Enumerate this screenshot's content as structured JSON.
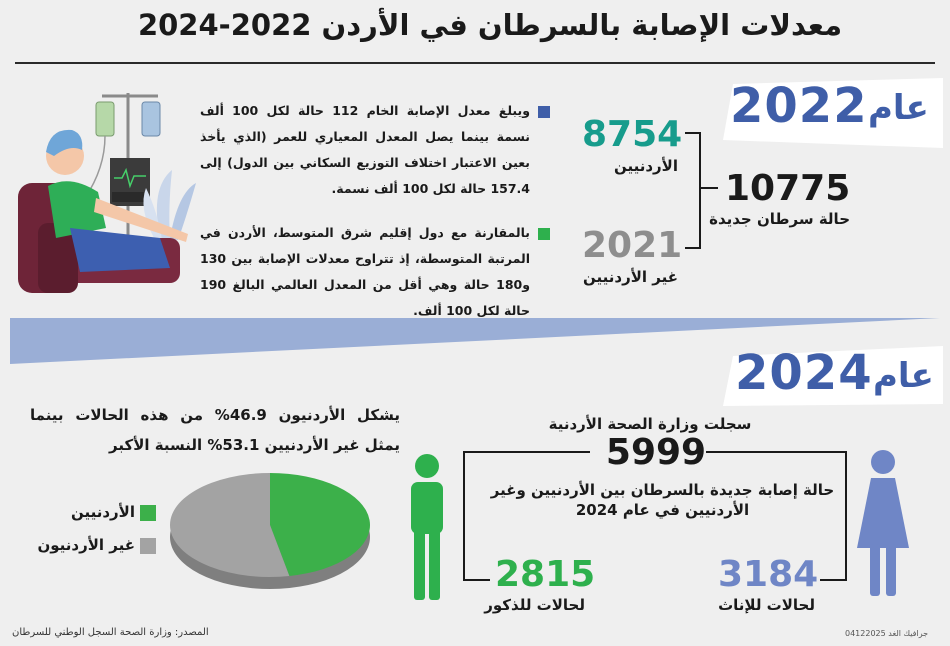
{
  "title": "معدلات الإصابة بالسرطان في الأردن 2022-2024",
  "colors": {
    "teal": "#179c8c",
    "blue": "#3f5ea8",
    "green": "#2eb04d",
    "gray": "#8e8e8e",
    "light_blue": "#6f86c6"
  },
  "section_2022": {
    "year_word": "عام",
    "year": "2022",
    "jordanians_value": "8754",
    "jordanians_label": "الأردنيين",
    "non_jordanians_value": "2021",
    "non_jordanians_label": "غير الأردنيين",
    "total_value": "10775",
    "total_label": "حالة سرطان جديدة",
    "paragraph_1": "ويبلغ معدل الإصابة الخام 112 حالة لكل 100 ألف نسمة بينما يصل المعدل المعياري للعمر (الذي يأخذ بعين الاعتبار اختلاف التوزيع السكاني بين الدول) إلى 157.4 حالة لكل 100 ألف نسمة.",
    "paragraph_2": "بالمقارنة مع دول إقليم شرق المتوسط، الأردن في المرتبة المتوسطة، إذ تتراوح معدلات الإصابة بين 130 و180 حالة وهي أقل من المعدل العالمي البالغ 190 حالة لكل 100 ألف."
  },
  "section_2024": {
    "year_word": "عام",
    "year": "2024",
    "pie_text": "يشكل الأردنيون 46.9% من هذه الحالات بينما يمثل غير الأردنيين 53.1% النسبة الأكبر",
    "legend_jordanians": "الأردنيين",
    "legend_non_jordanians": "غير الأردنيون",
    "ministry_text": "سجلت وزارة الصحة الأردنية",
    "total_value": "5999",
    "total_desc": "حالة إصابة جديدة بالسرطان بين الأردنيين وغير الأردنيين في عام 2024",
    "males_value": "2815",
    "males_label": "لحالات للذكور",
    "females_value": "3184",
    "females_label": "لحالات للإناث"
  },
  "chart_data": {
    "type": "pie",
    "labels": [
      "الأردنيين",
      "غير الأردنيون"
    ],
    "values": [
      46.9,
      53.1
    ],
    "colors": [
      "#3cb04a",
      "#a3a3a3"
    ]
  },
  "footer": {
    "source": "المصدر: وزارة الصحة السجل الوطني للسرطان",
    "credit": "04122025 جرافيك الغد"
  }
}
